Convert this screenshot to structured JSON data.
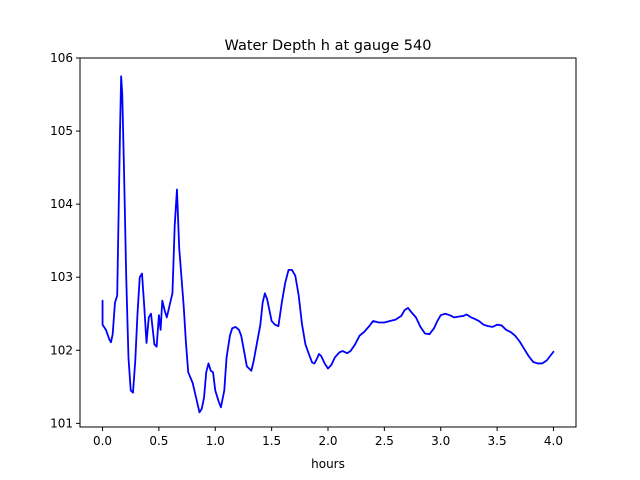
{
  "chart_data": {
    "type": "line",
    "title": "Water Depth h at gauge 540",
    "xlabel": "hours",
    "ylabel": "",
    "xlim": [
      -0.2,
      4.2
    ],
    "ylim": [
      100.95,
      106.0
    ],
    "xticks": [
      0.0,
      0.5,
      1.0,
      1.5,
      2.0,
      2.5,
      3.0,
      3.5,
      4.0
    ],
    "xtick_labels": [
      "0.0",
      "0.5",
      "1.0",
      "1.5",
      "2.0",
      "2.5",
      "3.0",
      "3.5",
      "4.0"
    ],
    "yticks": [
      101,
      102,
      103,
      104,
      105,
      106
    ],
    "ytick_labels": [
      "101",
      "102",
      "103",
      "104",
      "105",
      "106"
    ],
    "grid": false,
    "series": [
      {
        "color": "#0000ff",
        "points": [
          [
            0.0,
            102.68
          ],
          [
            0.0,
            102.35
          ],
          [
            0.03,
            102.28
          ],
          [
            0.06,
            102.15
          ],
          [
            0.075,
            102.11
          ],
          [
            0.09,
            102.22
          ],
          [
            0.11,
            102.65
          ],
          [
            0.13,
            102.75
          ],
          [
            0.155,
            105.0
          ],
          [
            0.165,
            105.75
          ],
          [
            0.175,
            105.5
          ],
          [
            0.19,
            104.5
          ],
          [
            0.21,
            103.0
          ],
          [
            0.23,
            101.9
          ],
          [
            0.25,
            101.45
          ],
          [
            0.27,
            101.42
          ],
          [
            0.29,
            101.85
          ],
          [
            0.31,
            102.5
          ],
          [
            0.33,
            103.0
          ],
          [
            0.35,
            103.05
          ],
          [
            0.37,
            102.6
          ],
          [
            0.39,
            102.1
          ],
          [
            0.41,
            102.45
          ],
          [
            0.43,
            102.5
          ],
          [
            0.46,
            102.08
          ],
          [
            0.48,
            102.05
          ],
          [
            0.5,
            102.48
          ],
          [
            0.515,
            102.28
          ],
          [
            0.53,
            102.68
          ],
          [
            0.55,
            102.55
          ],
          [
            0.57,
            102.45
          ],
          [
            0.6,
            102.65
          ],
          [
            0.62,
            102.78
          ],
          [
            0.64,
            103.7
          ],
          [
            0.66,
            104.2
          ],
          [
            0.68,
            103.4
          ],
          [
            0.7,
            103.0
          ],
          [
            0.72,
            102.6
          ],
          [
            0.74,
            102.1
          ],
          [
            0.76,
            101.7
          ],
          [
            0.8,
            101.55
          ],
          [
            0.83,
            101.35
          ],
          [
            0.86,
            101.15
          ],
          [
            0.88,
            101.2
          ],
          [
            0.9,
            101.35
          ],
          [
            0.92,
            101.7
          ],
          [
            0.94,
            101.82
          ],
          [
            0.96,
            101.72
          ],
          [
            0.98,
            101.7
          ],
          [
            1.0,
            101.45
          ],
          [
            1.03,
            101.3
          ],
          [
            1.05,
            101.22
          ],
          [
            1.08,
            101.45
          ],
          [
            1.1,
            101.9
          ],
          [
            1.13,
            102.2
          ],
          [
            1.15,
            102.3
          ],
          [
            1.18,
            102.32
          ],
          [
            1.21,
            102.28
          ],
          [
            1.23,
            102.2
          ],
          [
            1.26,
            101.95
          ],
          [
            1.28,
            101.78
          ],
          [
            1.3,
            101.75
          ],
          [
            1.32,
            101.72
          ],
          [
            1.34,
            101.85
          ],
          [
            1.37,
            102.1
          ],
          [
            1.4,
            102.35
          ],
          [
            1.42,
            102.65
          ],
          [
            1.44,
            102.78
          ],
          [
            1.46,
            102.7
          ],
          [
            1.48,
            102.55
          ],
          [
            1.5,
            102.4
          ],
          [
            1.53,
            102.35
          ],
          [
            1.56,
            102.33
          ],
          [
            1.59,
            102.65
          ],
          [
            1.62,
            102.92
          ],
          [
            1.65,
            103.1
          ],
          [
            1.68,
            103.1
          ],
          [
            1.71,
            103.02
          ],
          [
            1.74,
            102.75
          ],
          [
            1.77,
            102.35
          ],
          [
            1.8,
            102.08
          ],
          [
            1.83,
            101.95
          ],
          [
            1.86,
            101.83
          ],
          [
            1.88,
            101.82
          ],
          [
            1.9,
            101.88
          ],
          [
            1.92,
            101.95
          ],
          [
            1.94,
            101.92
          ],
          [
            1.97,
            101.82
          ],
          [
            2.0,
            101.75
          ],
          [
            2.03,
            101.8
          ],
          [
            2.06,
            101.9
          ],
          [
            2.1,
            101.97
          ],
          [
            2.13,
            101.99
          ],
          [
            2.17,
            101.96
          ],
          [
            2.2,
            101.99
          ],
          [
            2.24,
            102.08
          ],
          [
            2.28,
            102.2
          ],
          [
            2.32,
            102.25
          ],
          [
            2.36,
            102.32
          ],
          [
            2.4,
            102.4
          ],
          [
            2.45,
            102.38
          ],
          [
            2.5,
            102.38
          ],
          [
            2.55,
            102.4
          ],
          [
            2.6,
            102.42
          ],
          [
            2.65,
            102.47
          ],
          [
            2.68,
            102.55
          ],
          [
            2.71,
            102.58
          ],
          [
            2.74,
            102.52
          ],
          [
            2.78,
            102.45
          ],
          [
            2.82,
            102.32
          ],
          [
            2.86,
            102.23
          ],
          [
            2.9,
            102.22
          ],
          [
            2.94,
            102.3
          ],
          [
            2.97,
            102.4
          ],
          [
            3.0,
            102.48
          ],
          [
            3.04,
            102.5
          ],
          [
            3.08,
            102.48
          ],
          [
            3.12,
            102.45
          ],
          [
            3.16,
            102.46
          ],
          [
            3.2,
            102.47
          ],
          [
            3.23,
            102.49
          ],
          [
            3.27,
            102.45
          ],
          [
            3.3,
            102.43
          ],
          [
            3.34,
            102.4
          ],
          [
            3.38,
            102.35
          ],
          [
            3.42,
            102.33
          ],
          [
            3.46,
            102.32
          ],
          [
            3.5,
            102.35
          ],
          [
            3.54,
            102.34
          ],
          [
            3.58,
            102.28
          ],
          [
            3.62,
            102.25
          ],
          [
            3.66,
            102.2
          ],
          [
            3.7,
            102.12
          ],
          [
            3.74,
            102.02
          ],
          [
            3.78,
            101.92
          ],
          [
            3.82,
            101.84
          ],
          [
            3.86,
            101.82
          ],
          [
            3.9,
            101.82
          ],
          [
            3.94,
            101.86
          ],
          [
            3.97,
            101.92
          ],
          [
            4.0,
            101.98
          ]
        ]
      }
    ]
  }
}
